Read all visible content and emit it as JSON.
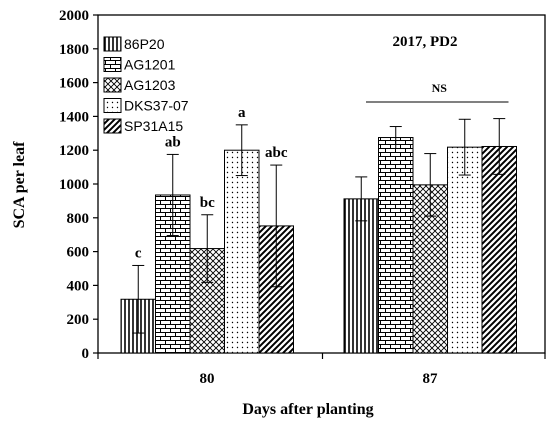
{
  "chart_data": {
    "type": "bar",
    "panel_label": "2017, PD2",
    "xlabel": "Days after planting",
    "ylabel": "SCA per leaf",
    "ylim": [
      0,
      2000
    ],
    "yticks": [
      "0",
      "200",
      "400",
      "600",
      "800",
      "1000",
      "1200",
      "1400",
      "1600",
      "1800",
      "2000"
    ],
    "categories": [
      "80",
      "87"
    ],
    "legend_position": "top-left",
    "grid": false,
    "series": [
      {
        "name": "86P20",
        "pattern": "vertical-lines",
        "values": [
          318,
          912
        ],
        "errors": [
          200,
          130
        ],
        "letters": [
          "c",
          ""
        ]
      },
      {
        "name": "AG1201",
        "pattern": "brick",
        "values": [
          935,
          1275
        ],
        "errors": [
          240,
          65
        ],
        "letters": [
          "ab",
          ""
        ]
      },
      {
        "name": "AG1203",
        "pattern": "crosshatch",
        "values": [
          618,
          995
        ],
        "errors": [
          200,
          185
        ],
        "letters": [
          "bc",
          ""
        ]
      },
      {
        "name": "DKS37-07",
        "pattern": "dots",
        "values": [
          1200,
          1218
        ],
        "errors": [
          150,
          165
        ],
        "letters": [
          "a",
          ""
        ]
      },
      {
        "name": "SP31A15",
        "pattern": "diagonal",
        "values": [
          752,
          1222
        ],
        "errors": [
          360,
          165
        ],
        "letters": [
          "abc",
          ""
        ]
      }
    ],
    "annotations": [
      {
        "text": "NS",
        "category": "87"
      }
    ]
  }
}
